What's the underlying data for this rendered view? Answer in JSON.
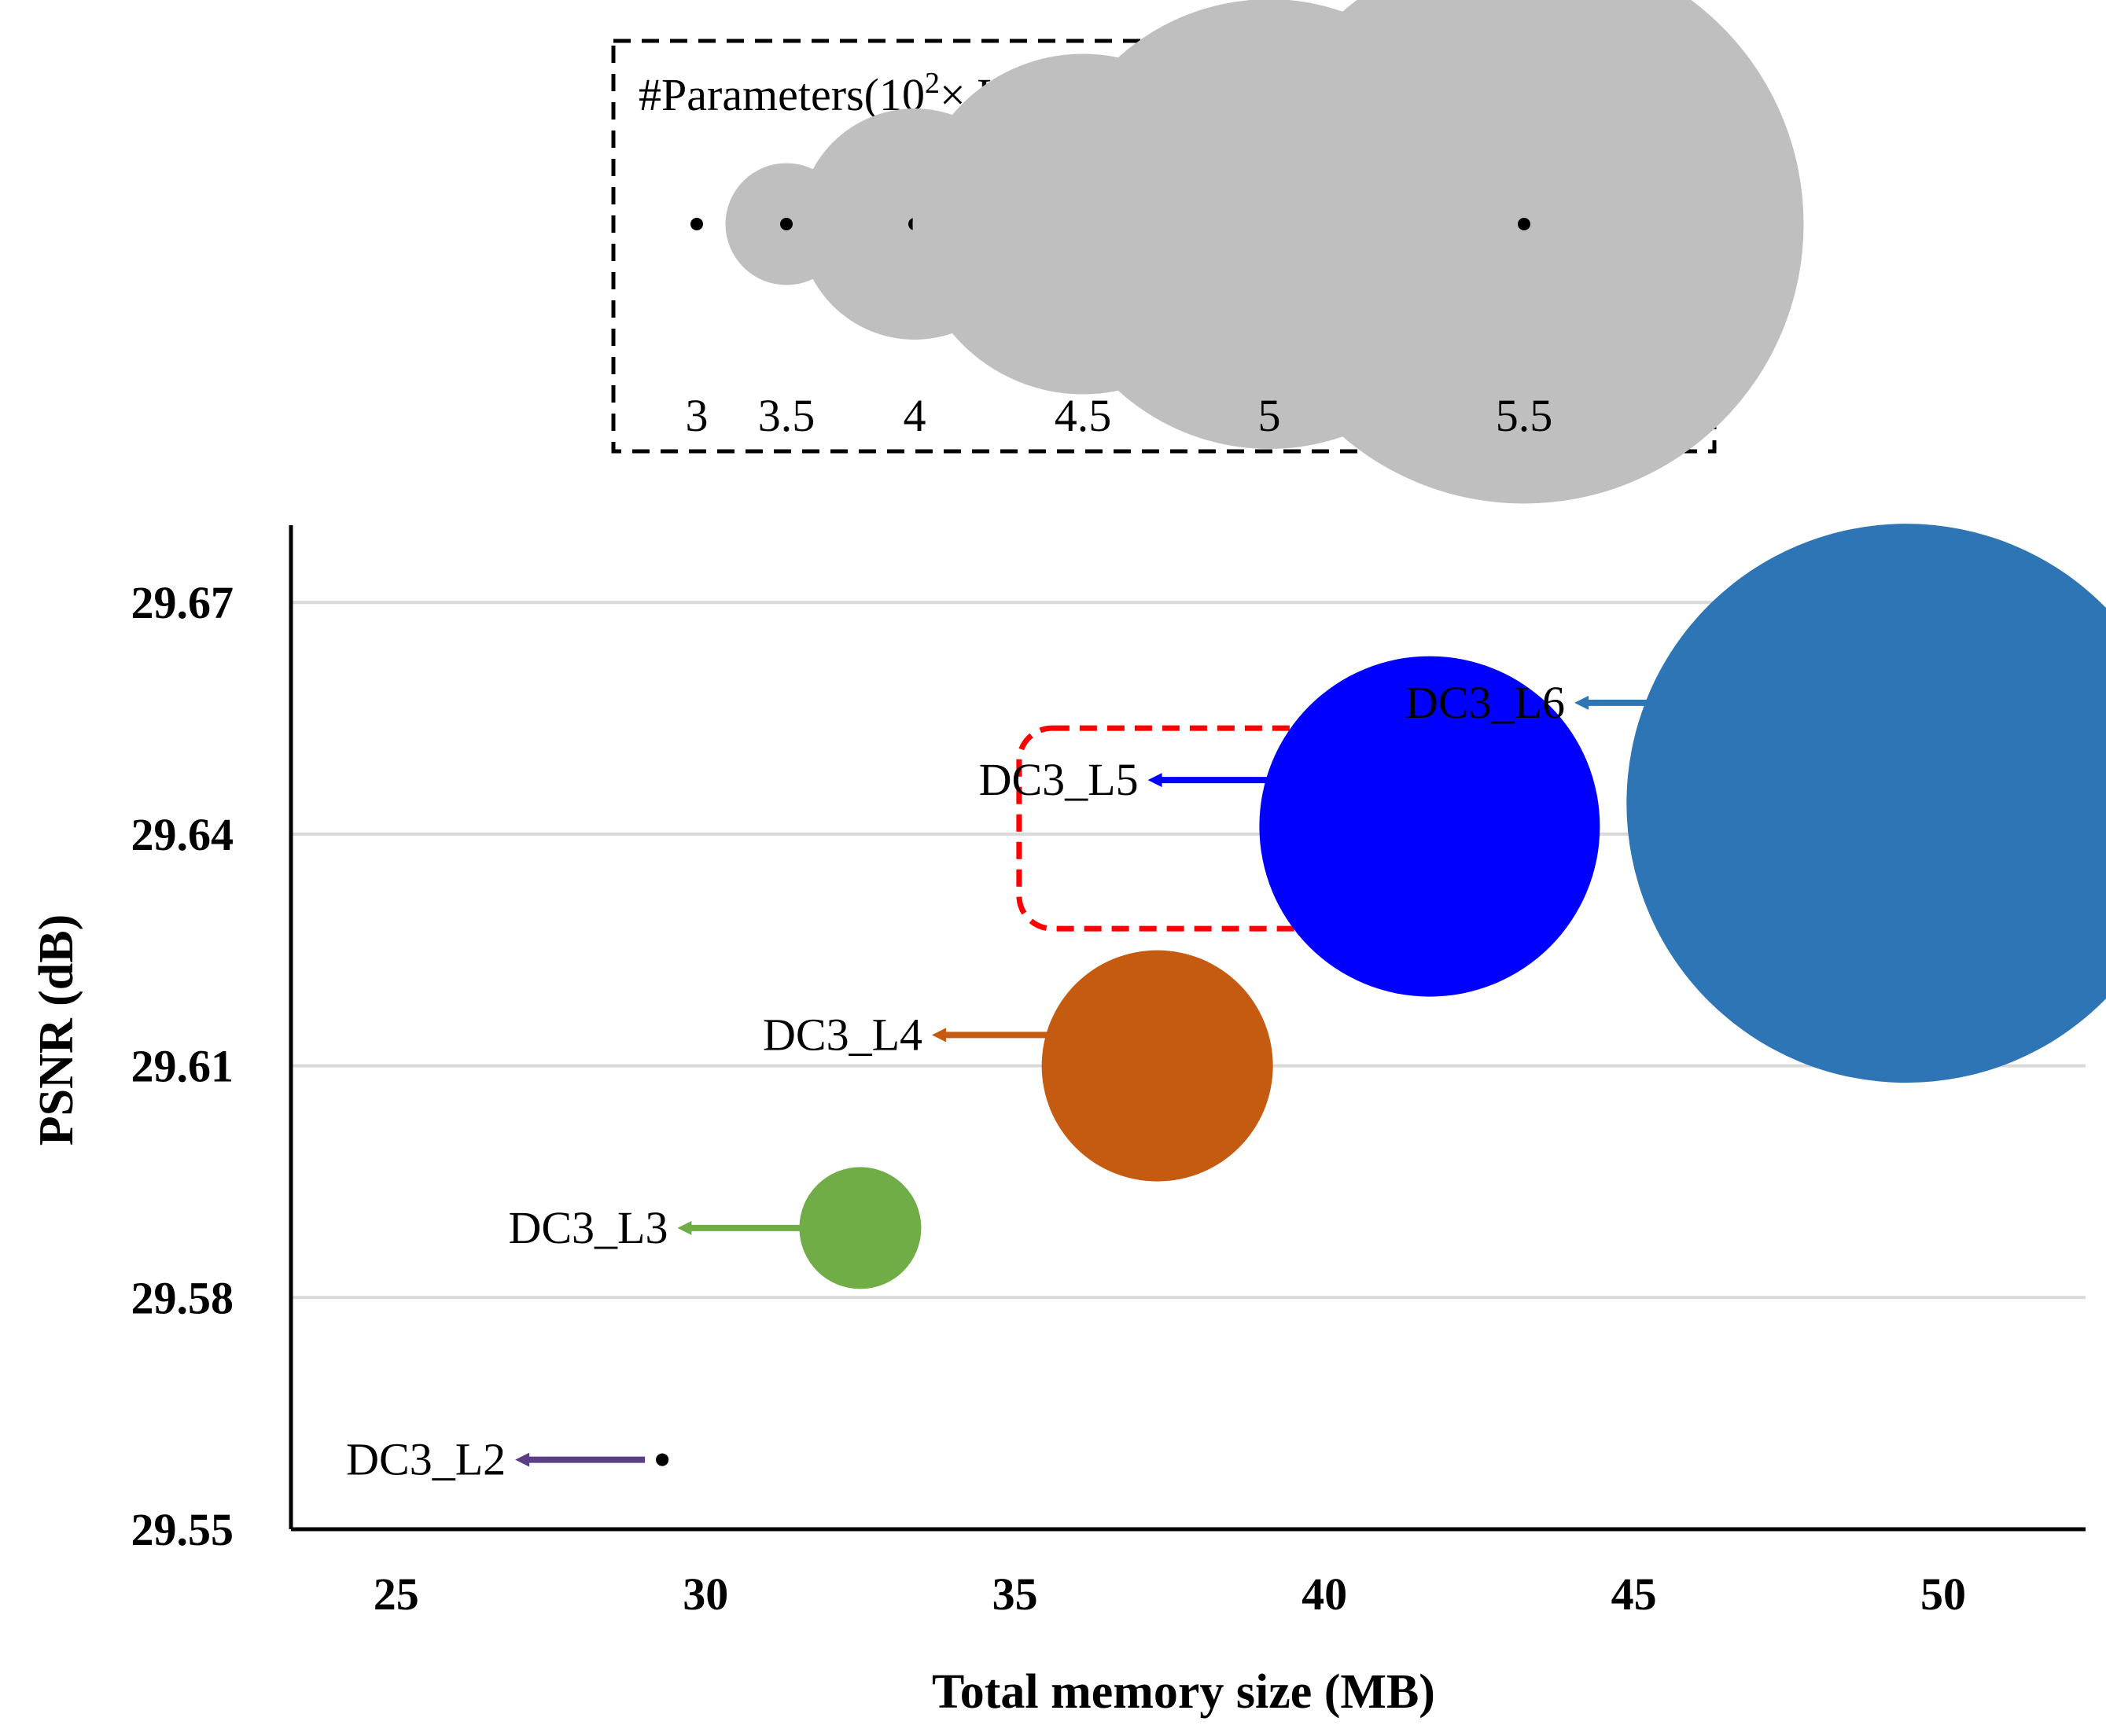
{
  "chart_data": {
    "type": "bubble",
    "xlabel": "Total memory size (MB)",
    "ylabel": "PSNR (dB)",
    "xlim": [
      23.3,
      52.3
    ],
    "ylim": [
      29.55,
      29.68
    ],
    "xticks": [
      25,
      30,
      35,
      40,
      45,
      50
    ],
    "yticks": [
      29.55,
      29.58,
      29.61,
      29.64,
      29.67
    ],
    "ytick_labels": [
      "29.55",
      "29.58",
      "29.61",
      "29.64",
      "29.67"
    ],
    "grid": true,
    "size_legend": {
      "title_prefix": "#Parameters(10",
      "title_sup": "2",
      "title_suffix": "× K)",
      "sizes": [
        3,
        3.5,
        4,
        4.5,
        5,
        5.5
      ],
      "labels": [
        "3",
        "3.5",
        "4",
        "4.5",
        "5",
        "5.5"
      ],
      "color": "#bfbfbf"
    },
    "series": [
      {
        "name": "DC3_L2",
        "x": 29.3,
        "y": 29.559,
        "params": 3.0,
        "color": "#5b3f86",
        "label_y": 29.559
      },
      {
        "name": "DC3_L3",
        "x": 32.5,
        "y": 29.589,
        "params": 3.5,
        "color": "#70ad47",
        "label_y": 29.589
      },
      {
        "name": "DC3_L4",
        "x": 37.3,
        "y": 29.61,
        "params": 4.0,
        "color": "#c55a11",
        "label_y": 29.614
      },
      {
        "name": "DC3_L5",
        "x": 41.7,
        "y": 29.641,
        "params": 4.5,
        "color": "#0000ff",
        "label_y": 29.647
      },
      {
        "name": "DC3_L6",
        "x": 49.4,
        "y": 29.644,
        "params": 5.5,
        "color": "#2e75b6",
        "label_y": 29.657
      }
    ],
    "highlight": "DC3_L5"
  }
}
